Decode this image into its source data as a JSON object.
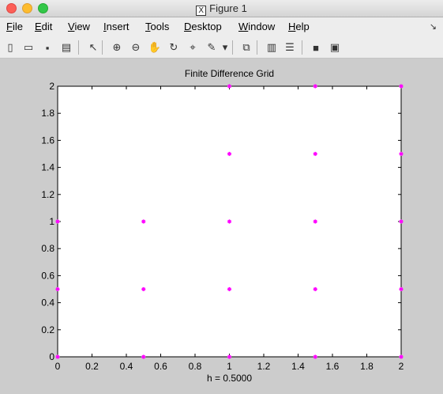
{
  "window": {
    "title": "Figure 1",
    "x_logo": "X"
  },
  "menu": [
    {
      "label": "File",
      "u": "F",
      "rest": "ile"
    },
    {
      "label": "Edit",
      "u": "E",
      "rest": "dit"
    },
    {
      "label": "View",
      "u": "V",
      "rest": "iew"
    },
    {
      "label": "Insert",
      "u": "I",
      "rest": "nsert"
    },
    {
      "label": "Tools",
      "u": "T",
      "rest": "ools"
    },
    {
      "label": "Desktop",
      "u": "D",
      "rest": "esktop"
    },
    {
      "label": "Window",
      "u": "W",
      "rest": "indow"
    },
    {
      "label": "Help",
      "u": "H",
      "rest": "elp"
    }
  ],
  "toolbar": [
    {
      "name": "new-figure-icon",
      "glyph": "▯"
    },
    {
      "name": "open-file-icon",
      "glyph": "▭"
    },
    {
      "name": "save-icon",
      "glyph": "▪"
    },
    {
      "name": "print-icon",
      "glyph": "▤"
    },
    {
      "name": "select-arrow-icon",
      "glyph": "↖"
    },
    {
      "name": "zoom-in-icon",
      "glyph": "⊕"
    },
    {
      "name": "zoom-out-icon",
      "glyph": "⊖"
    },
    {
      "name": "pan-hand-icon",
      "glyph": "✋"
    },
    {
      "name": "rotate-3d-icon",
      "glyph": "↻"
    },
    {
      "name": "data-cursor-icon",
      "glyph": "⌖"
    },
    {
      "name": "brush-icon",
      "glyph": "✎"
    },
    {
      "name": "brush-dropdown-icon",
      "glyph": "▾"
    },
    {
      "name": "link-plot-icon",
      "glyph": "⧉"
    },
    {
      "name": "colorbar-icon",
      "glyph": "▥"
    },
    {
      "name": "legend-icon",
      "glyph": "☰"
    },
    {
      "name": "hide-plot-tools-icon",
      "glyph": "■"
    },
    {
      "name": "show-plot-tools-icon",
      "glyph": "▣"
    }
  ],
  "chart_data": {
    "type": "scatter",
    "title": "Finite Difference Grid",
    "xlabel": "h = 0.5000",
    "ylabel": "",
    "xlim": [
      0,
      2
    ],
    "ylim": [
      0,
      2
    ],
    "grid": false,
    "xticks": [
      "0",
      "0.2",
      "0.4",
      "0.6",
      "0.8",
      "1",
      "1.2",
      "1.4",
      "1.6",
      "1.8",
      "2"
    ],
    "yticks": [
      "0",
      "0.2",
      "0.4",
      "0.6",
      "0.8",
      "1",
      "1.2",
      "1.4",
      "1.6",
      "1.8",
      "2"
    ],
    "marker_color": "#ff00ff",
    "points": [
      [
        0,
        0
      ],
      [
        0.5,
        0
      ],
      [
        1,
        0
      ],
      [
        1.5,
        0
      ],
      [
        2,
        0
      ],
      [
        0,
        0.5
      ],
      [
        0.5,
        0.5
      ],
      [
        1,
        0.5
      ],
      [
        1.5,
        0.5
      ],
      [
        2,
        0.5
      ],
      [
        0,
        1
      ],
      [
        0.5,
        1
      ],
      [
        1,
        1
      ],
      [
        1.5,
        1
      ],
      [
        2,
        1
      ],
      [
        1,
        1.5
      ],
      [
        1.5,
        1.5
      ],
      [
        2,
        1.5
      ],
      [
        1,
        2
      ],
      [
        1.5,
        2
      ],
      [
        2,
        2
      ]
    ]
  }
}
